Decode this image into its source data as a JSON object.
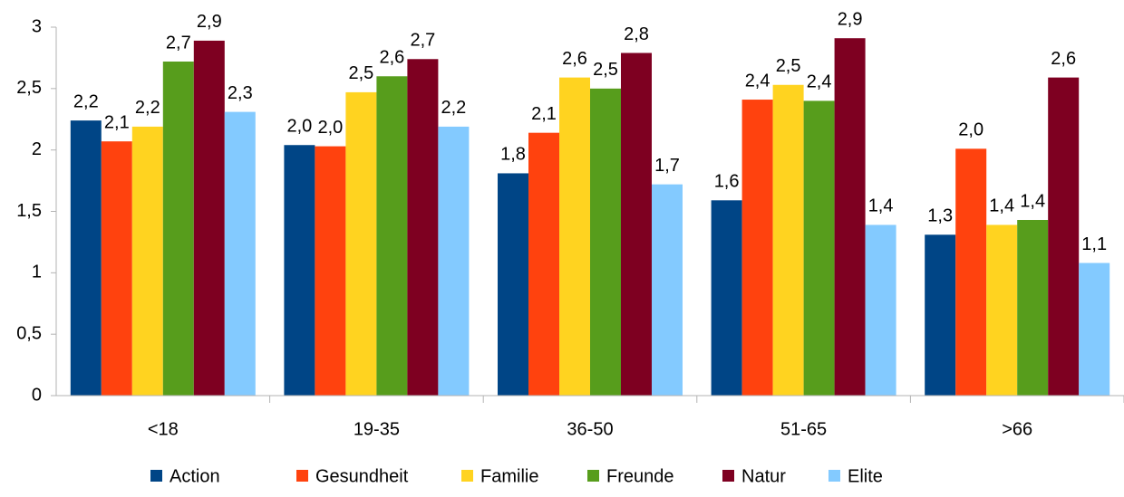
{
  "chart_data": {
    "type": "bar",
    "categories": [
      "<18",
      "19-35",
      "36-50",
      "51-65",
      ">66"
    ],
    "series": [
      {
        "name": "Action",
        "color": "#004586",
        "values": [
          2.24,
          2.04,
          1.81,
          1.59,
          1.31
        ],
        "value_labels": [
          "2,2",
          "2,0",
          "1,8",
          "1,6",
          "1,3"
        ]
      },
      {
        "name": "Gesundheit",
        "color": "#ff420e",
        "values": [
          2.07,
          2.03,
          2.14,
          2.41,
          2.01
        ],
        "value_labels": [
          "2,1",
          "2,0",
          "2,1",
          "2,4",
          "2,0"
        ]
      },
      {
        "name": "Familie",
        "color": "#ffd320",
        "values": [
          2.19,
          2.47,
          2.59,
          2.53,
          1.39
        ],
        "value_labels": [
          "2,2",
          "2,5",
          "2,6",
          "2,5",
          "1,4"
        ]
      },
      {
        "name": "Freunde",
        "color": "#579d1c",
        "values": [
          2.72,
          2.6,
          2.5,
          2.4,
          1.43
        ],
        "value_labels": [
          "2,7",
          "2,6",
          "2,5",
          "2,4",
          "1,4"
        ]
      },
      {
        "name": "Natur",
        "color": "#7e0021",
        "values": [
          2.89,
          2.74,
          2.79,
          2.91,
          2.59
        ],
        "value_labels": [
          "2,9",
          "2,7",
          "2,8",
          "2,9",
          "2,6"
        ]
      },
      {
        "name": "Elite",
        "color": "#83caff",
        "values": [
          2.31,
          2.19,
          1.72,
          1.39,
          1.08
        ],
        "value_labels": [
          "2,3",
          "2,2",
          "1,7",
          "1,4",
          "1,1"
        ]
      }
    ],
    "ylim": [
      0,
      3
    ],
    "yticks": [
      0,
      {
        "value": 0.5,
        "label": "0,5"
      },
      1,
      {
        "value": 1.5,
        "label": "1,5"
      },
      2,
      {
        "value": 2.5,
        "label": "2,5"
      },
      3
    ],
    "grid": false,
    "legend": "bottom"
  }
}
